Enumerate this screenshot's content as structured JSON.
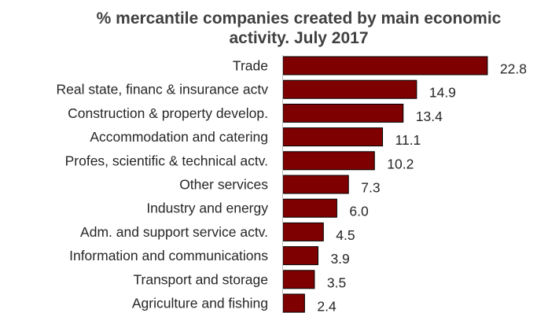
{
  "chart_data": {
    "type": "bar",
    "orientation": "horizontal",
    "title": "% mercantile companies created  by main economic activity. July 2017",
    "title_lines": [
      "% mercantile companies created  by main economic",
      "activity. July 2017"
    ],
    "categories": [
      "Trade",
      "Real state, financ & insurance actv",
      "Construction & property develop.",
      "Accommodation and catering",
      "Profes, scientific & technical actv.",
      "Other services",
      "Industry and energy",
      "Adm. and support service actv.",
      "Information and communications",
      "Transport and storage",
      "Agriculture and fishing"
    ],
    "values": [
      22.8,
      14.9,
      13.4,
      11.1,
      10.2,
      7.3,
      6.0,
      4.5,
      3.9,
      3.5,
      2.4
    ],
    "value_labels": [
      "22.8",
      "14.9",
      "13.4",
      "11.1",
      "10.2",
      "7.3",
      "6.0",
      "4.5",
      "3.9",
      "3.5",
      "2.4"
    ],
    "xlim": [
      0,
      25
    ],
    "grid": false,
    "legend": "none",
    "bar_color": "#7f0000"
  }
}
